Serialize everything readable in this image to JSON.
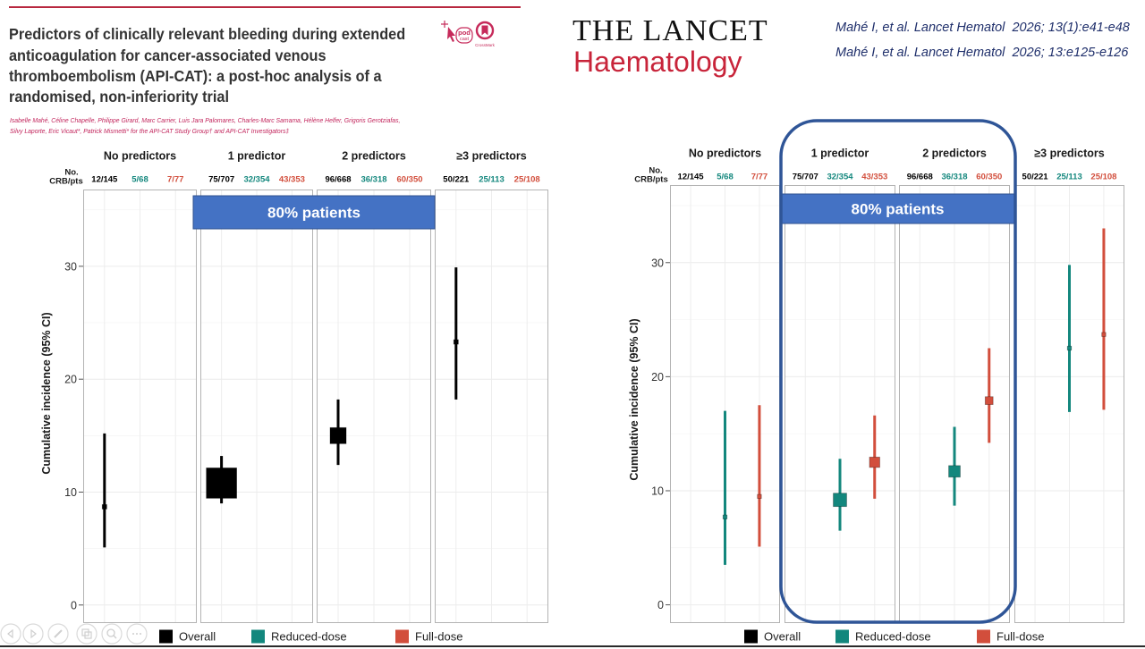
{
  "header": {
    "title_lines": [
      "Predictors of clinically relevant bleeding during extended",
      "anticoagulation for cancer-associated venous",
      "thromboembolism (API-CAT): a post-hoc analysis of a",
      "randomised, non-inferiority trial"
    ],
    "author_lines": [
      "Isabelle Mahé, Céline Chapelle, Philippe Girard, Marc Carrier, Luis Jara Palomares, Charles-Marc Samama, Hélène Helfer, Grigoris Gerotziafas,",
      "Silvy Laporte, Eric Vicaut*, Patrick Mismetti* for the API-CAT Study Group† and API-CAT Investigators‡"
    ],
    "podcast_badge": {
      "line1": "pod",
      "line2": "cast"
    },
    "crossmark_badge": "CrossMark"
  },
  "journal": {
    "line1": "THE LANCET",
    "line2": "Haematology"
  },
  "citations": [
    "Mahé I, et al. Lancet Hematol  2026; 13(1):e41-e48",
    "Mahé I, et al. Lancet Hematol  2026; 13:e125-e126"
  ],
  "colors": {
    "accent_red": "#b8283f",
    "overall": "#000000",
    "reduced_dose": "#13877d",
    "full_dose": "#d24e3c",
    "annotation_fill": "#4472c4",
    "highlight_outline": "#2f5597",
    "citation": "#1f2f6b",
    "authors": "#c2255c"
  },
  "toolbar": {
    "icons": [
      "previous-icon",
      "next-icon",
      "pen-icon",
      "slides-icon",
      "zoom-icon",
      "more-icon"
    ]
  },
  "chart_data": [
    {
      "type": "scatter",
      "title": "",
      "xlabel": "",
      "ylabel": "Cumulative incidence (95% CI)",
      "ylim": [
        -1.6,
        36.8
      ],
      "yticks": [
        0,
        10,
        20,
        30
      ],
      "ytick_labels": [
        "0",
        "10",
        "20",
        "30"
      ],
      "grid": true,
      "categories": [
        "Overall",
        "Reduced-dose",
        "Full-dose"
      ],
      "panels": [
        "No predictors",
        "1 predictor",
        "2 predictors",
        "≥3 predictors"
      ],
      "count_row_label": [
        "No.",
        "CRB/pts"
      ],
      "counts": [
        [
          "12/145",
          "5/68",
          "7/77"
        ],
        [
          "75/707",
          "32/354",
          "43/353"
        ],
        [
          "96/668",
          "36/318",
          "60/350"
        ],
        [
          "50/221",
          "25/113",
          "25/108"
        ]
      ],
      "series": [
        {
          "name": "Overall",
          "color": "#000000",
          "points": [
            {
              "panel": "No predictors",
              "est": 8.7,
              "lo": 5.1,
              "hi": 15.2,
              "weight": 0.15
            },
            {
              "panel": "1 predictor",
              "est": 10.8,
              "lo": 9.0,
              "hi": 13.2,
              "weight": 1.0
            },
            {
              "panel": "2 predictors",
              "est": 15.0,
              "lo": 12.4,
              "hi": 18.2,
              "weight": 0.53
            },
            {
              "panel": "≥3 predictors",
              "est": 23.3,
              "lo": 18.2,
              "hi": 29.9,
              "weight": 0.15
            }
          ]
        }
      ],
      "legend": [
        {
          "label": "Overall",
          "color": "#000000"
        },
        {
          "label": "Reduced-dose",
          "color": "#13877d"
        },
        {
          "label": "Full-dose",
          "color": "#d24e3c"
        }
      ],
      "legend_position": "bottom",
      "annotation": "80% patients",
      "annotation_panels": [
        "1 predictor",
        "2 predictors"
      ]
    },
    {
      "type": "scatter",
      "title": "",
      "xlabel": "",
      "ylabel": "Cumulative incidence (95% CI)",
      "ylim": [
        -1.6,
        36.8
      ],
      "yticks": [
        0,
        10,
        20,
        30
      ],
      "ytick_labels": [
        "0",
        "10",
        "20",
        "30"
      ],
      "grid": true,
      "categories": [
        "Overall",
        "Reduced-dose",
        "Full-dose"
      ],
      "panels": [
        "No predictors",
        "1 predictor",
        "2 predictors",
        "≥3 predictors"
      ],
      "count_row_label": [
        "No.",
        "CRB/pts"
      ],
      "counts": [
        [
          "12/145",
          "5/68",
          "7/77"
        ],
        [
          "75/707",
          "32/354",
          "43/353"
        ],
        [
          "96/668",
          "36/318",
          "60/350"
        ],
        [
          "50/221",
          "25/113",
          "25/108"
        ]
      ],
      "series": [
        {
          "name": "Reduced-dose",
          "color": "#13877d",
          "points": [
            {
              "panel": "No predictors",
              "est": 7.7,
              "lo": 3.5,
              "hi": 17.0,
              "weight": 0.12
            },
            {
              "panel": "1 predictor",
              "est": 9.2,
              "lo": 6.5,
              "hi": 12.8,
              "weight": 0.44
            },
            {
              "panel": "2 predictors",
              "est": 11.7,
              "lo": 8.7,
              "hi": 15.6,
              "weight": 0.38
            },
            {
              "panel": "≥3 predictors",
              "est": 22.5,
              "lo": 16.9,
              "hi": 29.8,
              "weight": 0.12
            }
          ]
        },
        {
          "name": "Full-dose",
          "color": "#d24e3c",
          "points": [
            {
              "panel": "No predictors",
              "est": 9.5,
              "lo": 5.1,
              "hi": 17.5,
              "weight": 0.12
            },
            {
              "panel": "1 predictor",
              "est": 12.5,
              "lo": 9.3,
              "hi": 16.6,
              "weight": 0.34
            },
            {
              "panel": "2 predictors",
              "est": 17.9,
              "lo": 14.2,
              "hi": 22.5,
              "weight": 0.26
            },
            {
              "panel": "≥3 predictors",
              "est": 23.7,
              "lo": 17.1,
              "hi": 33.0,
              "weight": 0.12
            }
          ]
        }
      ],
      "legend": [
        {
          "label": "Overall",
          "color": "#000000"
        },
        {
          "label": "Reduced-dose",
          "color": "#13877d"
        },
        {
          "label": "Full-dose",
          "color": "#d24e3c"
        }
      ],
      "legend_position": "bottom",
      "annotation": "80% patients",
      "annotation_panels": [
        "1 predictor",
        "2 predictors"
      ],
      "highlighted_panels": [
        "1 predictor",
        "2 predictors"
      ]
    }
  ]
}
